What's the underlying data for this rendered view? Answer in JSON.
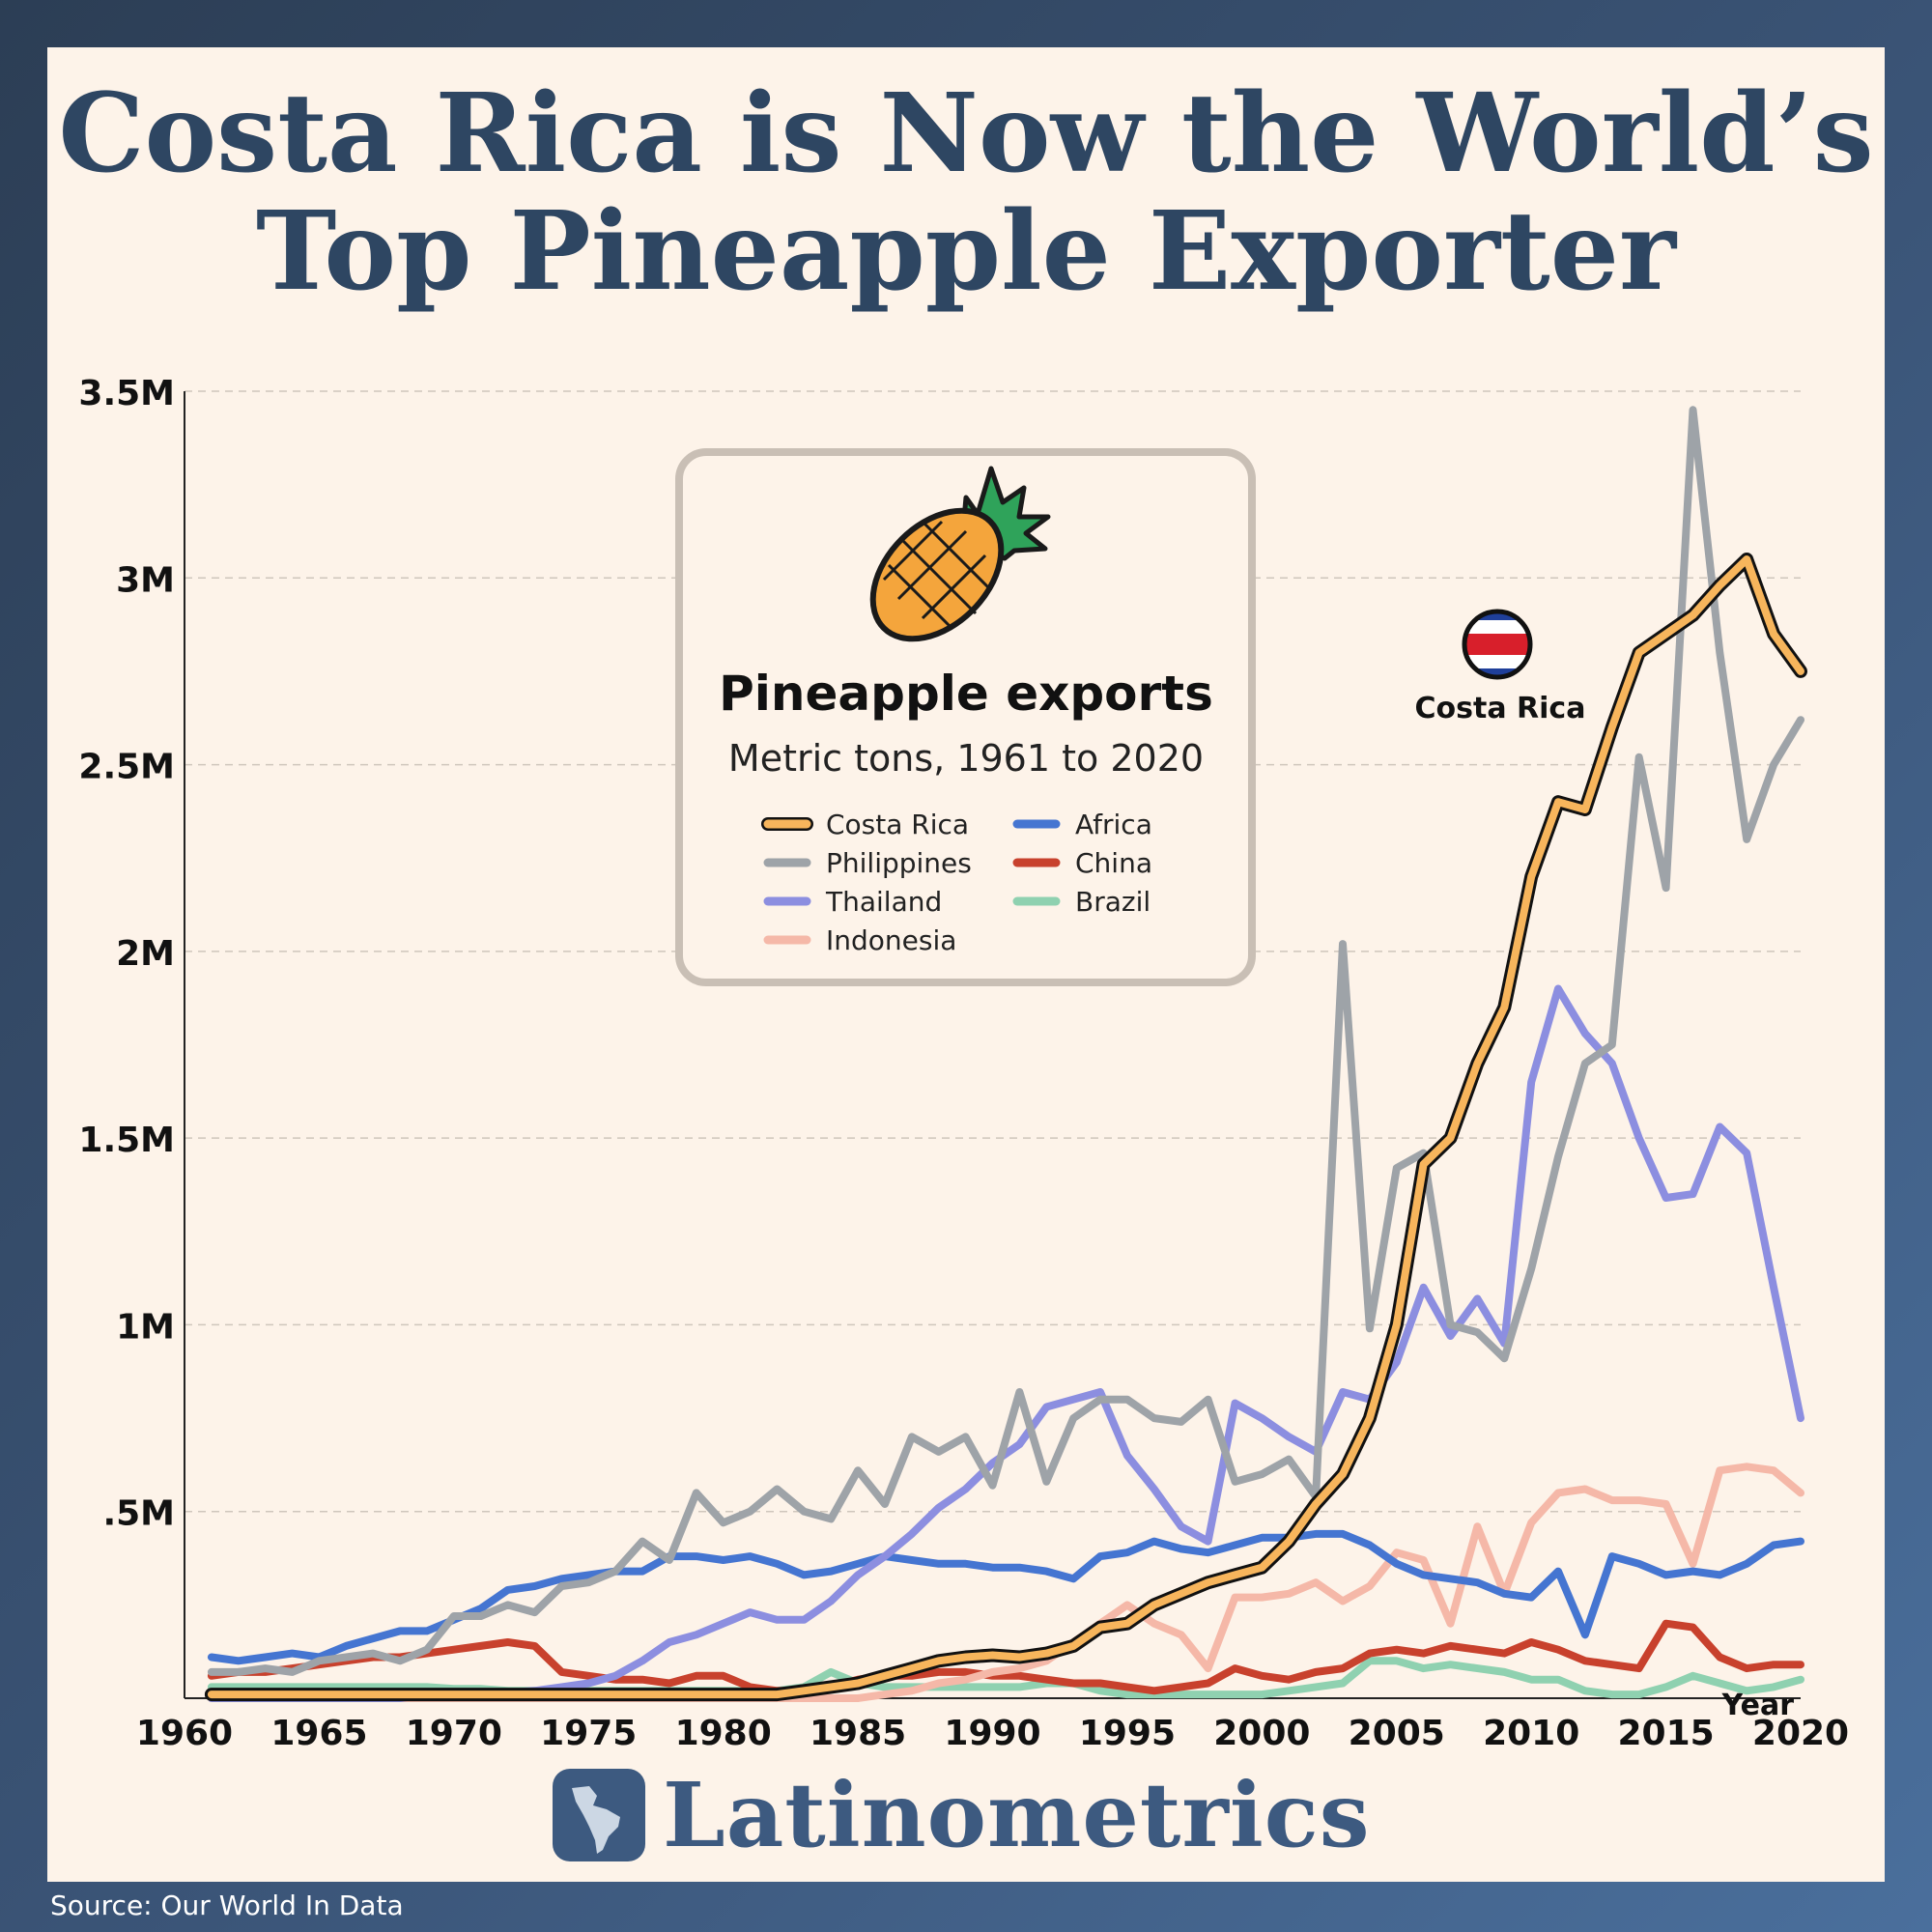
{
  "title": "Costa Rica is Now the World’s Top Pineapple Exporter",
  "source": "Source: Our World In Data",
  "brand": "Latinometrics",
  "legend_box": {
    "title": "Pineapple exports",
    "subtitle": "Metric tons, 1961 to 2020"
  },
  "callout": {
    "label": "Costa Rica"
  },
  "chart_data": {
    "type": "line",
    "title": "Pineapple exports",
    "subtitle": "Metric tons, 1961 to 2020",
    "xlabel": "Year",
    "ylabel": "",
    "xlim": [
      1960,
      2020
    ],
    "ylim": [
      0,
      3500000
    ],
    "x_ticks": [
      "1960",
      "1965",
      "1970",
      "1975",
      "1980",
      "1985",
      "1990",
      "1995",
      "2000",
      "2005",
      "2010",
      "2015",
      "2020"
    ],
    "y_ticks": [
      {
        "value": 500000,
        "label": ".5M"
      },
      {
        "value": 1000000,
        "label": "1M"
      },
      {
        "value": 1500000,
        "label": "1.5M"
      },
      {
        "value": 2000000,
        "label": "2M"
      },
      {
        "value": 2500000,
        "label": "2.5M"
      },
      {
        "value": 3000000,
        "label": "3M"
      },
      {
        "value": 3500000,
        "label": "3.5M"
      }
    ],
    "grid": true,
    "legend_position": "top-center",
    "x": [
      1961,
      1962,
      1963,
      1964,
      1965,
      1966,
      1967,
      1968,
      1969,
      1970,
      1971,
      1972,
      1973,
      1974,
      1975,
      1976,
      1977,
      1978,
      1979,
      1980,
      1981,
      1982,
      1983,
      1984,
      1985,
      1986,
      1987,
      1988,
      1989,
      1990,
      1991,
      1992,
      1993,
      1994,
      1995,
      1996,
      1997,
      1998,
      1999,
      2000,
      2001,
      2002,
      2003,
      2004,
      2005,
      2006,
      2007,
      2008,
      2009,
      2010,
      2011,
      2012,
      2013,
      2014,
      2015,
      2016,
      2017,
      2018,
      2019,
      2020
    ],
    "series": [
      {
        "name": "Costa Rica",
        "color": "#f7b55c",
        "values": [
          10000,
          10000,
          10000,
          10000,
          10000,
          10000,
          10000,
          10000,
          10000,
          10000,
          10000,
          10000,
          10000,
          10000,
          10000,
          10000,
          10000,
          10000,
          10000,
          10000,
          10000,
          10000,
          20000,
          30000,
          40000,
          60000,
          80000,
          100000,
          110000,
          115000,
          110000,
          120000,
          140000,
          190000,
          200000,
          250000,
          280000,
          310000,
          330000,
          350000,
          420000,
          520000,
          600000,
          750000,
          1000000,
          1430000,
          1500000,
          1700000,
          1850000,
          2200000,
          2400000,
          2380000,
          2600000,
          2800000,
          2850000,
          2900000,
          2980000,
          3050000,
          2850000,
          2750000
        ]
      },
      {
        "name": "Philippines",
        "color": "#9ea3a8",
        "values": [
          70000,
          70000,
          80000,
          70000,
          100000,
          110000,
          120000,
          100000,
          130000,
          220000,
          220000,
          250000,
          230000,
          300000,
          310000,
          340000,
          420000,
          370000,
          550000,
          470000,
          500000,
          560000,
          500000,
          480000,
          610000,
          520000,
          700000,
          660000,
          700000,
          570000,
          820000,
          580000,
          750000,
          800000,
          800000,
          750000,
          740000,
          800000,
          580000,
          600000,
          640000,
          540000,
          2020000,
          990000,
          1420000,
          1460000,
          1000000,
          980000,
          910000,
          1150000,
          1450000,
          1700000,
          1750000,
          2520000,
          2170000,
          3450000,
          2800000,
          2300000,
          2500000,
          2620000
        ]
      },
      {
        "name": "Thailand",
        "color": "#8c8ee0",
        "values": [
          0,
          0,
          0,
          0,
          0,
          0,
          0,
          0,
          10000,
          10000,
          15000,
          15000,
          20000,
          30000,
          40000,
          60000,
          100000,
          150000,
          170000,
          200000,
          230000,
          210000,
          210000,
          260000,
          330000,
          380000,
          440000,
          510000,
          560000,
          630000,
          680000,
          780000,
          800000,
          820000,
          650000,
          560000,
          460000,
          420000,
          790000,
          750000,
          700000,
          660000,
          820000,
          800000,
          900000,
          1100000,
          970000,
          1070000,
          950000,
          1650000,
          1900000,
          1780000,
          1700000,
          1500000,
          1340000,
          1350000,
          1530000,
          1460000,
          1100000,
          750000
        ]
      },
      {
        "name": "Indonesia",
        "color": "#f5b8a8",
        "values": [
          0,
          0,
          0,
          0,
          0,
          0,
          0,
          0,
          0,
          0,
          0,
          0,
          0,
          0,
          0,
          0,
          0,
          0,
          0,
          0,
          0,
          0,
          0,
          0,
          0,
          10000,
          20000,
          40000,
          50000,
          70000,
          80000,
          100000,
          150000,
          200000,
          250000,
          200000,
          170000,
          80000,
          270000,
          270000,
          280000,
          310000,
          260000,
          300000,
          390000,
          370000,
          200000,
          460000,
          280000,
          470000,
          550000,
          560000,
          530000,
          530000,
          520000,
          360000,
          610000,
          620000,
          610000,
          550000
        ]
      },
      {
        "name": "Africa",
        "color": "#4575d1",
        "values": [
          110000,
          100000,
          110000,
          120000,
          110000,
          140000,
          160000,
          180000,
          180000,
          210000,
          240000,
          290000,
          300000,
          320000,
          330000,
          340000,
          340000,
          380000,
          380000,
          370000,
          380000,
          360000,
          330000,
          340000,
          360000,
          380000,
          370000,
          360000,
          360000,
          350000,
          350000,
          340000,
          320000,
          380000,
          390000,
          420000,
          400000,
          390000,
          410000,
          430000,
          430000,
          440000,
          440000,
          410000,
          360000,
          330000,
          320000,
          310000,
          280000,
          270000,
          340000,
          170000,
          380000,
          360000,
          330000,
          340000,
          330000,
          360000,
          410000,
          420000
        ]
      },
      {
        "name": "China",
        "color": "#c8412d",
        "values": [
          60000,
          70000,
          70000,
          80000,
          90000,
          100000,
          110000,
          110000,
          120000,
          130000,
          140000,
          150000,
          140000,
          70000,
          60000,
          50000,
          50000,
          40000,
          60000,
          60000,
          30000,
          20000,
          20000,
          30000,
          50000,
          60000,
          60000,
          70000,
          70000,
          60000,
          60000,
          50000,
          40000,
          40000,
          30000,
          20000,
          30000,
          40000,
          80000,
          60000,
          50000,
          70000,
          80000,
          120000,
          130000,
          120000,
          140000,
          130000,
          120000,
          150000,
          130000,
          100000,
          90000,
          80000,
          200000,
          190000,
          110000,
          80000,
          90000,
          90000
        ]
      },
      {
        "name": "Brazil",
        "color": "#8fd1b0",
        "values": [
          30000,
          30000,
          30000,
          30000,
          30000,
          30000,
          30000,
          30000,
          30000,
          25000,
          25000,
          20000,
          20000,
          20000,
          20000,
          20000,
          20000,
          20000,
          20000,
          20000,
          20000,
          20000,
          30000,
          70000,
          40000,
          30000,
          30000,
          30000,
          30000,
          30000,
          30000,
          40000,
          40000,
          20000,
          10000,
          10000,
          10000,
          10000,
          10000,
          10000,
          20000,
          30000,
          40000,
          100000,
          100000,
          80000,
          90000,
          80000,
          70000,
          50000,
          50000,
          20000,
          10000,
          10000,
          30000,
          60000,
          40000,
          20000,
          30000,
          50000
        ]
      }
    ]
  }
}
